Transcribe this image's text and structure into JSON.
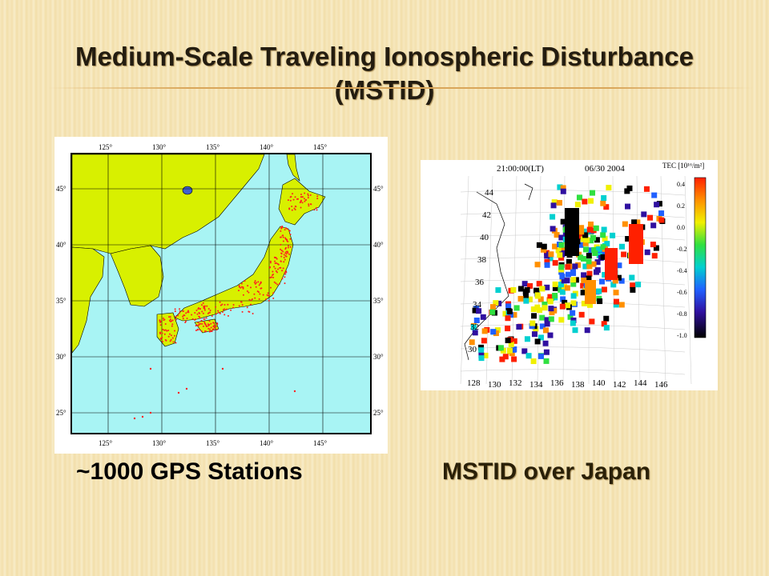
{
  "slide": {
    "title": "Medium-Scale Traveling Ionospheric Disturbance (MSTID)",
    "title_line1": "Medium-Scale Traveling Ionospheric Disturbance",
    "title_line2": "(MSTID)"
  },
  "left_figure": {
    "caption": "~1000 GPS Stations",
    "lon_ticks": [
      "125°",
      "130°",
      "135°",
      "140°",
      "145°"
    ],
    "lat_ticks": [
      "45°",
      "40°",
      "35°",
      "30°",
      "25°"
    ],
    "colors": {
      "land": "#d8f000",
      "sea": "#a8f4f4",
      "station": "#ff2020"
    }
  },
  "right_figure": {
    "caption": "MSTID over Japan",
    "time_label": "21:00:00(LT)",
    "date_label": "06/30 2004",
    "colorbar_title": "TEC [10¹⁶/m²]",
    "colorbar_ticks": [
      "0.4",
      "0.2",
      "0.0",
      "-0.2",
      "-0.4",
      "-0.6",
      "-0.8",
      "-1.0"
    ],
    "lon_ticks": [
      "128",
      "130",
      "132",
      "134",
      "136",
      "138",
      "140",
      "142",
      "144",
      "146"
    ],
    "lat_ticks": [
      "44",
      "42",
      "40",
      "38",
      "36",
      "34",
      "32",
      "30"
    ]
  }
}
